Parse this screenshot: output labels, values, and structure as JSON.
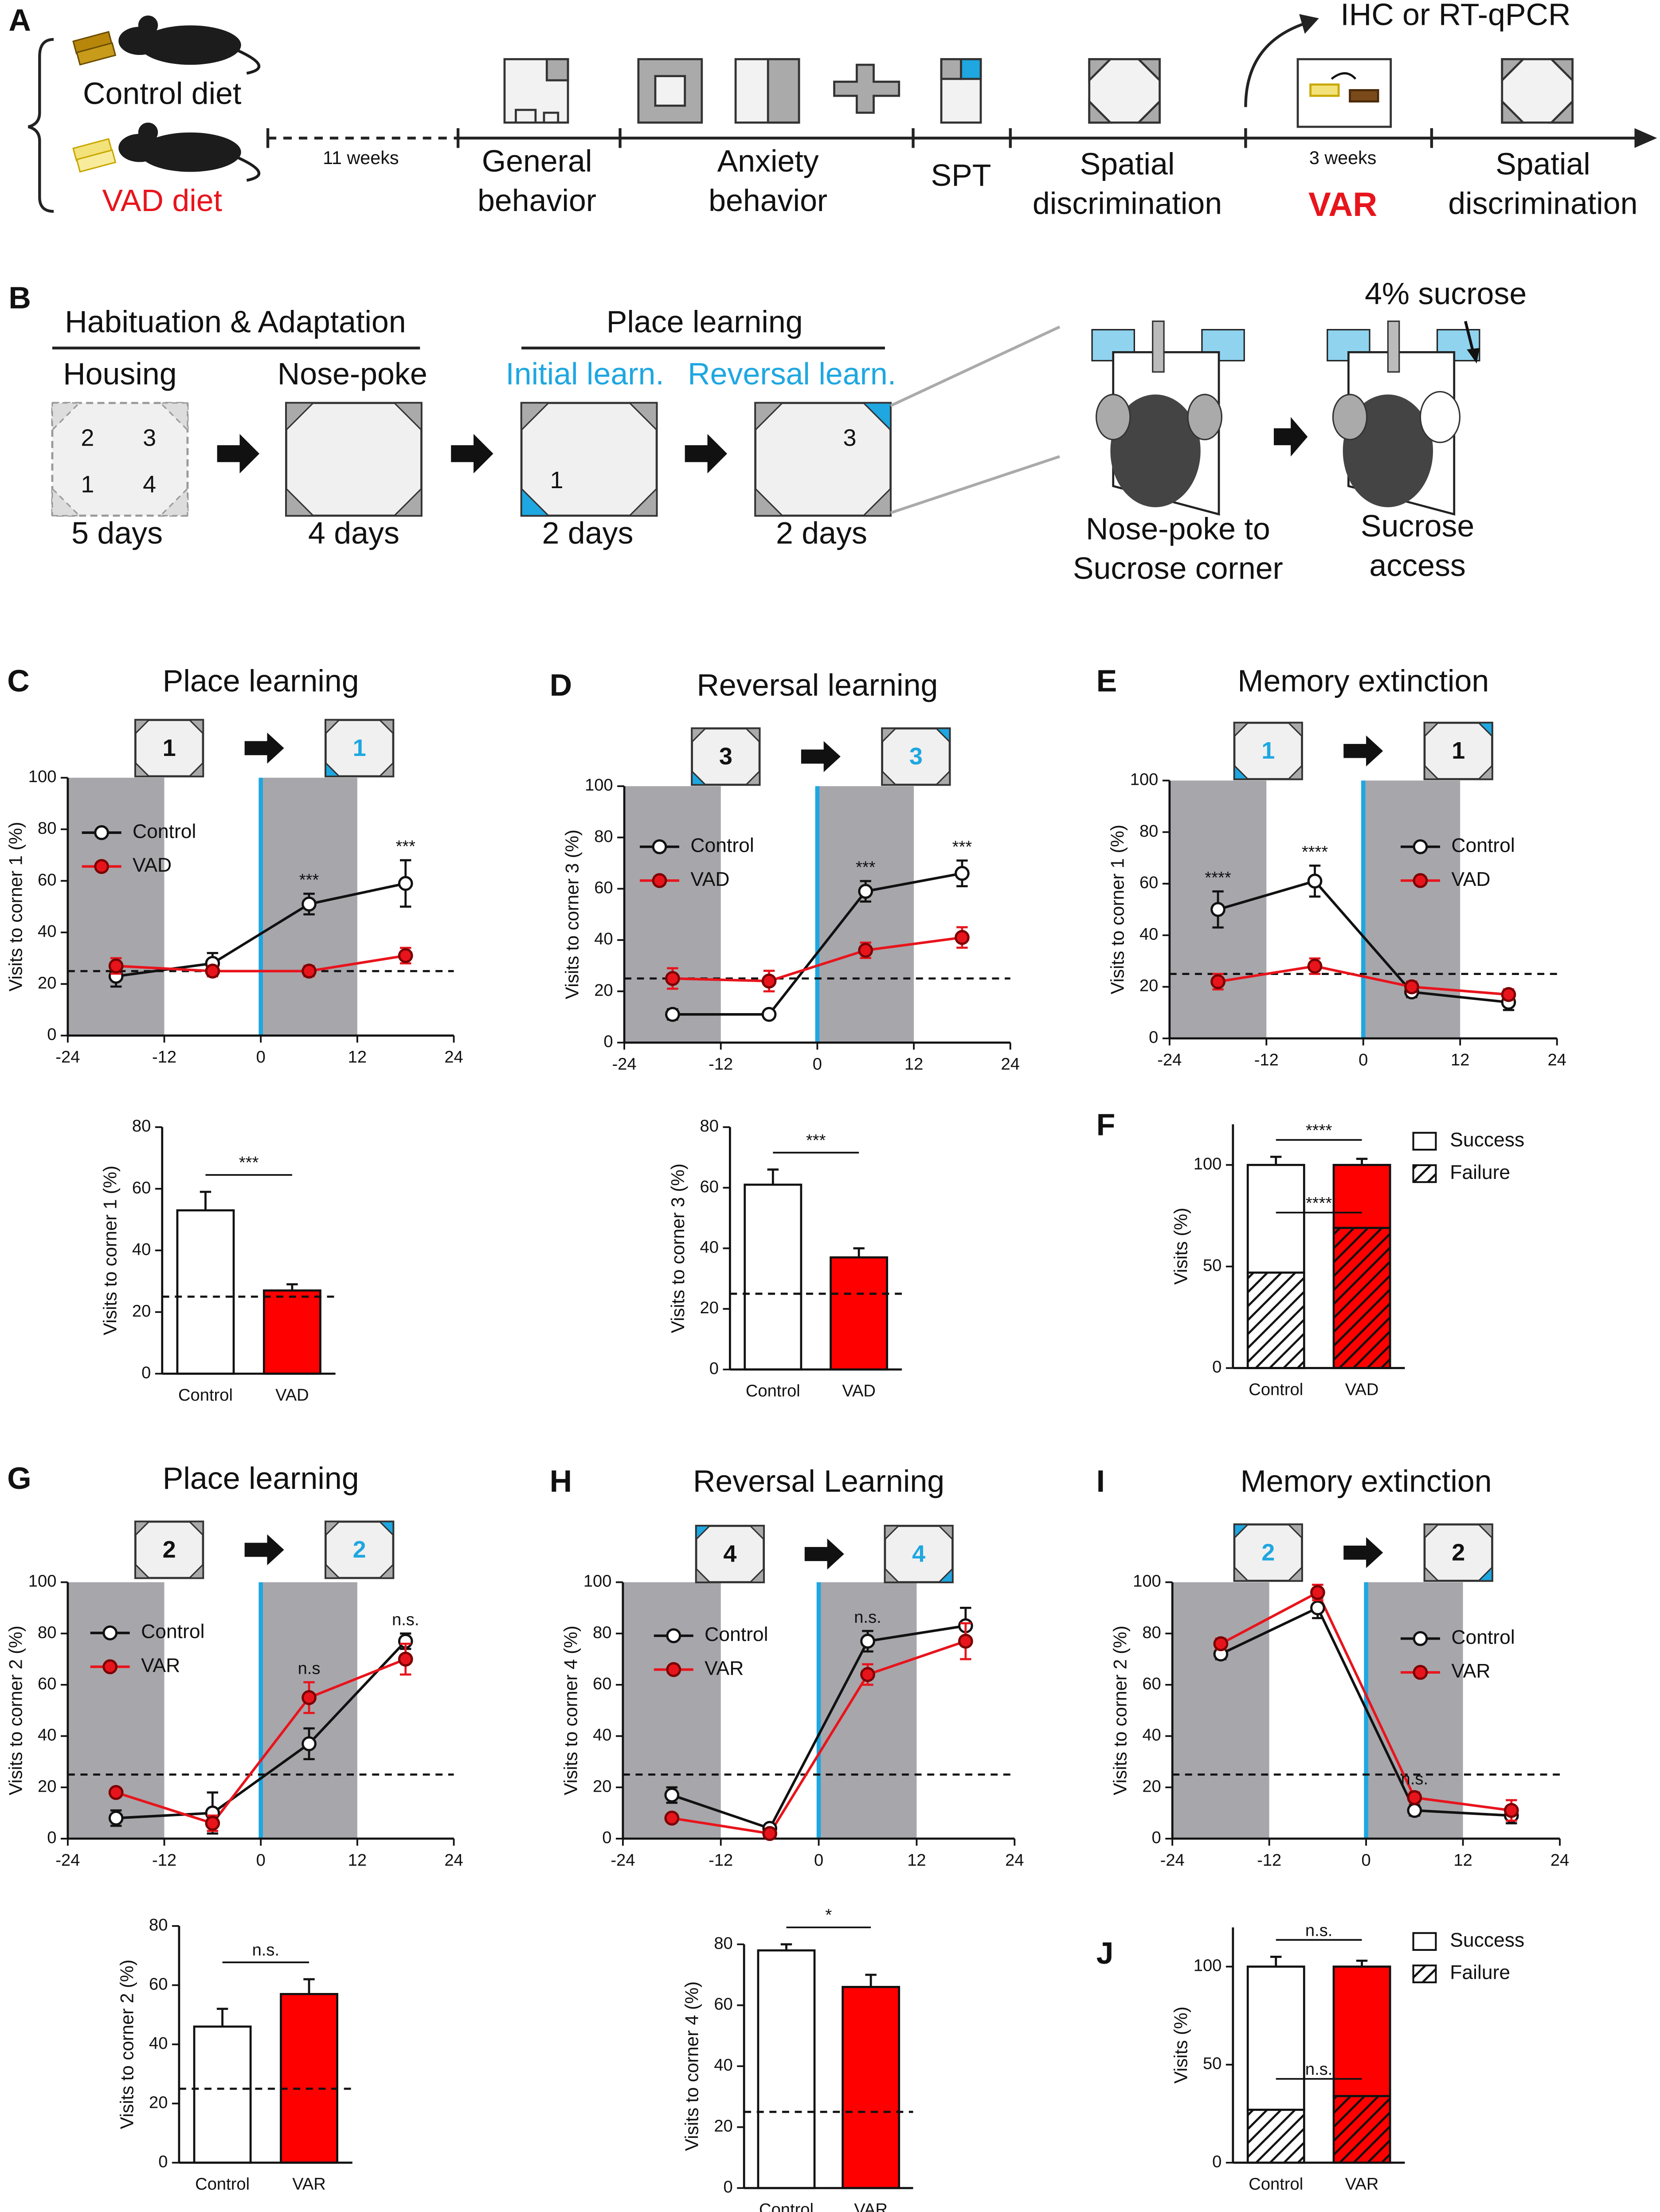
{
  "diagram": {
    "a": {
      "label": "A",
      "control_diet": "Control diet",
      "vad_diet": "VAD diet",
      "duration_1": "11 weeks",
      "general": [
        "General",
        "behavior"
      ],
      "anxiety": [
        "Anxiety",
        "behavior"
      ],
      "spt": "SPT",
      "spatial_1": [
        "Spatial",
        "discrimination"
      ],
      "duration_2": "3 weeks",
      "var": "VAR",
      "spatial_2": [
        "Spatial",
        "discrimination"
      ],
      "outcome": "IHC or RT-qPCR"
    },
    "b": {
      "label": "B",
      "habituation": "Habituation & Adaptation",
      "housing": "Housing",
      "nose_poke": "Nose-poke",
      "place_learning": "Place learning",
      "initial": "Initial learn.",
      "reversal": "Reversal learn.",
      "days": [
        "5 days",
        "4 days",
        "2 days",
        "2 days"
      ],
      "housing_corners": [
        "2",
        "3",
        "1",
        "4"
      ],
      "initial_corner": "1",
      "reversal_corner": "3",
      "sucrose": "4% sucrose",
      "nose_poke_caption": [
        "Nose-poke to",
        "Sucrose corner"
      ],
      "access_caption": [
        "Sucrose",
        "access"
      ]
    }
  },
  "chart_data": [
    {
      "type": "line",
      "label": "C",
      "title": "Place learning",
      "ylabel": "Visits to corner 1 (%)",
      "icons": [
        {
          "label": "1",
          "color": "#111111"
        },
        {
          "label": "1",
          "color": "#1ea7e1"
        }
      ],
      "x": [
        -18,
        -6,
        6,
        18
      ],
      "xlim": [
        -24,
        24
      ],
      "xticks": [
        -24,
        -12,
        0,
        12,
        24
      ],
      "ylim": [
        0,
        100
      ],
      "yticks": [
        0,
        20,
        40,
        60,
        80,
        100
      ],
      "shaded": [
        [
          -24,
          -12
        ],
        [
          0,
          12
        ]
      ],
      "shade_color": "#a7a6ab",
      "vline": 0,
      "vline_color": "#1ea7e1",
      "reference_line": 25,
      "series": [
        {
          "name": "Control",
          "color": "#111111",
          "marker_fill": "#ffffff",
          "values": [
            23,
            28,
            51,
            59
          ],
          "errors": [
            4,
            4,
            4,
            9
          ]
        },
        {
          "name": "VAD",
          "color": "#e8141c",
          "marker_fill": "#e8141c",
          "values": [
            27,
            25,
            25,
            31
          ],
          "errors": [
            3,
            2,
            2,
            3
          ]
        }
      ],
      "annotations": [
        {
          "x": 6,
          "text": "***"
        },
        {
          "x": 18,
          "text": "***"
        }
      ]
    },
    {
      "type": "bar",
      "ylabel": "Visits to corner 1 (%)",
      "categories": [
        "Control",
        "VAD"
      ],
      "values": [
        53,
        27
      ],
      "errors": [
        6,
        2
      ],
      "colors": [
        "#ffffff",
        "#ff0000"
      ],
      "ylim": [
        0,
        80
      ],
      "yticks": [
        0,
        20,
        40,
        60,
        80
      ],
      "reference_line": 25,
      "annotation": "***"
    },
    {
      "type": "line",
      "label": "D",
      "title": "Reversal learning",
      "ylabel": "Visits to corner 3 (%)",
      "icons": [
        {
          "label": "3",
          "color": "#111111"
        },
        {
          "label": "3",
          "color": "#1ea7e1"
        }
      ],
      "x": [
        -18,
        -6,
        6,
        18
      ],
      "xlim": [
        -24,
        24
      ],
      "xticks": [
        -24,
        -12,
        0,
        12,
        24
      ],
      "ylim": [
        0,
        100
      ],
      "yticks": [
        0,
        20,
        40,
        60,
        80,
        100
      ],
      "shaded": [
        [
          -24,
          -12
        ],
        [
          0,
          12
        ]
      ],
      "shade_color": "#a7a6ab",
      "vline": 0,
      "vline_color": "#1ea7e1",
      "reference_line": 25,
      "series": [
        {
          "name": "Control",
          "color": "#111111",
          "marker_fill": "#ffffff",
          "values": [
            11,
            11,
            59,
            66
          ],
          "errors": [
            2,
            1,
            4,
            5
          ]
        },
        {
          "name": "VAD",
          "color": "#e8141c",
          "marker_fill": "#e8141c",
          "values": [
            25,
            24,
            36,
            41
          ],
          "errors": [
            4,
            4,
            3,
            4
          ]
        }
      ],
      "annotations": [
        {
          "x": 6,
          "text": "***"
        },
        {
          "x": 18,
          "text": "***"
        }
      ]
    },
    {
      "type": "bar",
      "ylabel": "Visits to corner 3 (%)",
      "categories": [
        "Control",
        "VAD"
      ],
      "values": [
        61,
        37
      ],
      "errors": [
        5,
        3
      ],
      "colors": [
        "#ffffff",
        "#ff0000"
      ],
      "ylim": [
        0,
        80
      ],
      "yticks": [
        0,
        20,
        40,
        60,
        80
      ],
      "reference_line": 25,
      "annotation": "***"
    },
    {
      "type": "line",
      "label": "E",
      "title": "Memory extinction",
      "ylabel": "Visits to corner 1 (%)",
      "icons": [
        {
          "label": "1",
          "color": "#1ea7e1"
        },
        {
          "label": "1",
          "color": "#111111"
        }
      ],
      "x": [
        -18,
        -6,
        6,
        18
      ],
      "xlim": [
        -24,
        24
      ],
      "xticks": [
        -24,
        -12,
        0,
        12,
        24
      ],
      "ylim": [
        0,
        100
      ],
      "yticks": [
        0,
        20,
        40,
        60,
        80,
        100
      ],
      "shaded": [
        [
          -24,
          -12
        ],
        [
          0,
          12
        ]
      ],
      "shade_color": "#a7a6ab",
      "vline": 0,
      "vline_color": "#1ea7e1",
      "reference_line": 25,
      "series": [
        {
          "name": "Control",
          "color": "#111111",
          "marker_fill": "#ffffff",
          "values": [
            50,
            61,
            18,
            14
          ],
          "errors": [
            7,
            6,
            2,
            3
          ]
        },
        {
          "name": "VAD",
          "color": "#e8141c",
          "marker_fill": "#e8141c",
          "values": [
            22,
            28,
            20,
            17
          ],
          "errors": [
            3,
            3,
            2,
            2
          ]
        }
      ],
      "annotations": [
        {
          "x": -18,
          "text": "****"
        },
        {
          "x": -6,
          "text": "****"
        }
      ]
    },
    {
      "type": "stacked_bar",
      "label": "F",
      "ylabel": "Visits (%)",
      "categories": [
        "Control",
        "VAD"
      ],
      "colors": [
        "#ffffff",
        "#ff0000"
      ],
      "series": [
        {
          "name": "Failure",
          "pattern": "hatch",
          "values": [
            47,
            69
          ],
          "errors": [
            4,
            2
          ]
        },
        {
          "name": "Success",
          "values": [
            53,
            31
          ],
          "errors": [
            4,
            3
          ]
        }
      ],
      "ylim": [
        0,
        120
      ],
      "yticks": [
        0,
        50,
        100
      ],
      "annotations": [
        {
          "text": "****"
        },
        {
          "text": "****"
        }
      ]
    },
    {
      "type": "line",
      "label": "G",
      "title": "Place learning",
      "ylabel": "Visits to corner 2 (%)",
      "icons": [
        {
          "label": "2",
          "color": "#111111"
        },
        {
          "label": "2",
          "color": "#1ea7e1"
        }
      ],
      "x": [
        -18,
        -6,
        6,
        18
      ],
      "xlim": [
        -24,
        24
      ],
      "xticks": [
        -24,
        -12,
        0,
        12,
        24
      ],
      "ylim": [
        0,
        100
      ],
      "yticks": [
        0,
        20,
        40,
        60,
        80,
        100
      ],
      "shaded": [
        [
          -24,
          -12
        ],
        [
          0,
          12
        ]
      ],
      "shade_color": "#a7a6ab",
      "vline": 0,
      "vline_color": "#1ea7e1",
      "reference_line": 25,
      "series": [
        {
          "name": "Control",
          "color": "#111111",
          "marker_fill": "#ffffff",
          "values": [
            8,
            10,
            37,
            77
          ],
          "errors": [
            3,
            8,
            6,
            3
          ]
        },
        {
          "name": "VAR",
          "color": "#e8141c",
          "marker_fill": "#e8141c",
          "values": [
            18,
            6,
            55,
            70
          ],
          "errors": [
            1,
            3,
            6,
            6
          ]
        }
      ],
      "annotations": [
        {
          "x": 6,
          "text": "n.s"
        },
        {
          "x": 18,
          "text": "n.s."
        }
      ]
    },
    {
      "type": "bar",
      "ylabel": "Visits to corner 2 (%)",
      "categories": [
        "Control",
        "VAR"
      ],
      "values": [
        46,
        57
      ],
      "errors": [
        6,
        5
      ],
      "colors": [
        "#ffffff",
        "#ff0000"
      ],
      "ylim": [
        0,
        80
      ],
      "yticks": [
        0,
        20,
        40,
        60,
        80
      ],
      "reference_line": 25,
      "annotation": "n.s."
    },
    {
      "type": "line",
      "label": "H",
      "title": "Reversal Learning",
      "ylabel": "Visits to corner 4 (%)",
      "icons": [
        {
          "label": "4",
          "color": "#111111"
        },
        {
          "label": "4",
          "color": "#1ea7e1"
        }
      ],
      "x": [
        -18,
        -6,
        6,
        18
      ],
      "xlim": [
        -24,
        24
      ],
      "xticks": [
        -24,
        -12,
        0,
        12,
        24
      ],
      "ylim": [
        0,
        100
      ],
      "yticks": [
        0,
        20,
        40,
        60,
        80,
        100
      ],
      "shaded": [
        [
          -24,
          -12
        ],
        [
          0,
          12
        ]
      ],
      "shade_color": "#a7a6ab",
      "vline": 0,
      "vline_color": "#1ea7e1",
      "reference_line": 25,
      "series": [
        {
          "name": "Control",
          "color": "#111111",
          "marker_fill": "#ffffff",
          "values": [
            17,
            4,
            77,
            83
          ],
          "errors": [
            3,
            1,
            4,
            7
          ]
        },
        {
          "name": "VAR",
          "color": "#e8141c",
          "marker_fill": "#e8141c",
          "values": [
            8,
            2,
            64,
            77
          ],
          "errors": [
            1,
            1,
            4,
            7
          ]
        }
      ],
      "annotations": [
        {
          "x": 6,
          "text": "n.s."
        }
      ]
    },
    {
      "type": "bar",
      "ylabel": "Visits to corner 4 (%)",
      "categories": [
        "Control",
        "VAR"
      ],
      "values": [
        78,
        66
      ],
      "errors": [
        2,
        4
      ],
      "colors": [
        "#ffffff",
        "#ff0000"
      ],
      "ylim": [
        0,
        80
      ],
      "yticks": [
        0,
        20,
        40,
        60,
        80
      ],
      "reference_line": 25,
      "annotation": "*"
    },
    {
      "type": "line",
      "label": "I",
      "title": "Memory extinction",
      "ylabel": "Visits to corner 2 (%)",
      "icons": [
        {
          "label": "2",
          "color": "#1ea7e1"
        },
        {
          "label": "2",
          "color": "#111111"
        }
      ],
      "x": [
        -18,
        -6,
        6,
        18
      ],
      "xlim": [
        -24,
        24
      ],
      "xticks": [
        -24,
        -12,
        0,
        12,
        24
      ],
      "ylim": [
        0,
        100
      ],
      "yticks": [
        0,
        20,
        40,
        60,
        80,
        100
      ],
      "shaded": [
        [
          -24,
          -12
        ],
        [
          0,
          12
        ]
      ],
      "shade_color": "#a7a6ab",
      "vline": 0,
      "vline_color": "#1ea7e1",
      "reference_line": 25,
      "series": [
        {
          "name": "Control",
          "color": "#111111",
          "marker_fill": "#ffffff",
          "values": [
            72,
            90,
            11,
            9
          ],
          "errors": [
            2,
            4,
            2,
            3
          ]
        },
        {
          "name": "VAR",
          "color": "#e8141c",
          "marker_fill": "#e8141c",
          "values": [
            76,
            96,
            16,
            11
          ],
          "errors": [
            2,
            3,
            2,
            4
          ]
        }
      ],
      "annotations": [
        {
          "x": 6,
          "text": "n.s."
        }
      ]
    },
    {
      "type": "stacked_bar",
      "label": "J",
      "ylabel": "Visits (%)",
      "categories": [
        "Control",
        "VAR"
      ],
      "colors": [
        "#ffffff",
        "#ff0000"
      ],
      "series": [
        {
          "name": "Failure",
          "pattern": "hatch",
          "values": [
            27,
            34
          ],
          "errors": [
            5,
            3
          ]
        },
        {
          "name": "Success",
          "values": [
            73,
            66
          ],
          "errors": [
            5,
            3
          ]
        }
      ],
      "ylim": [
        0,
        120
      ],
      "yticks": [
        0,
        50,
        100
      ],
      "annotations": [
        {
          "text": "n.s."
        },
        {
          "text": "n.s."
        }
      ]
    }
  ]
}
